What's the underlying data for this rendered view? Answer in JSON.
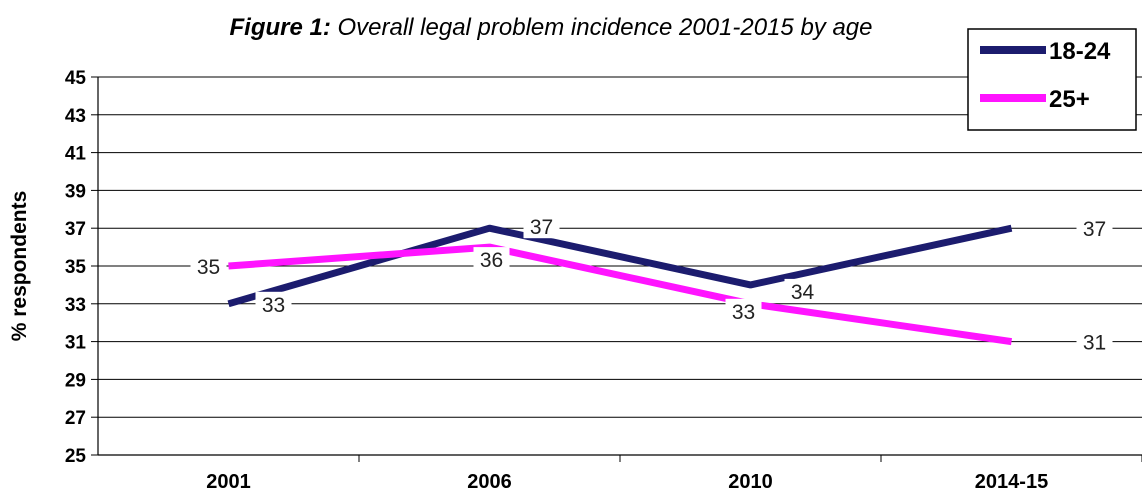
{
  "title_bold": "Figure 1:",
  "title_rest": " Overall legal problem incidence 2001-2015 by age",
  "chart_data": {
    "type": "line",
    "categories": [
      "2001",
      "2006",
      "2010",
      "2014-15"
    ],
    "series": [
      {
        "name": "18-24",
        "values": [
          33,
          37,
          34,
          37
        ],
        "color": "#1c1c6e"
      },
      {
        "name": "25+",
        "values": [
          35,
          36,
          33,
          31
        ],
        "color": "#ff14ff"
      }
    ],
    "ylabel": "% respondents",
    "ylim": [
      25,
      45
    ],
    "yticks": [
      25,
      27,
      29,
      31,
      33,
      35,
      37,
      39,
      41,
      43,
      45
    ],
    "grid": true,
    "legend_position": "top-right"
  }
}
